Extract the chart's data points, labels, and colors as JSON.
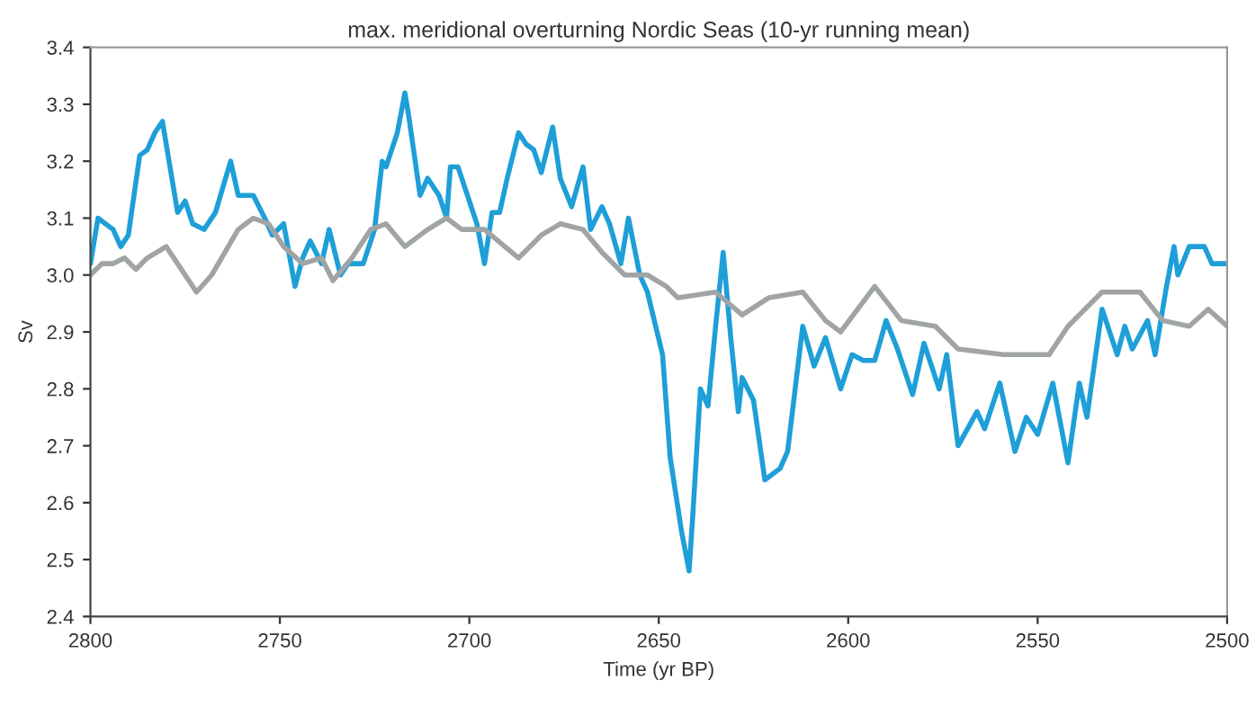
{
  "chart_data": {
    "type": "line",
    "title": "max. meridional overturning Nordic Seas (10-yr running mean)",
    "xlabel": "Time (yr BP)",
    "ylabel": "Sv",
    "xlim": [
      2800,
      2500
    ],
    "xticks": [
      2800,
      2750,
      2700,
      2650,
      2600,
      2550,
      2500
    ],
    "ylim": [
      2.4,
      3.4
    ],
    "yticks": [
      {
        "value": 2.4,
        "label": "2.4"
      },
      {
        "value": 2.5,
        "label": "2.5"
      },
      {
        "value": 2.6,
        "label": "2.6"
      },
      {
        "value": 2.7,
        "label": "2.7"
      },
      {
        "value": 2.8,
        "label": "2.8"
      },
      {
        "value": 2.9,
        "label": "2.9"
      },
      {
        "value": 3.0,
        "label": "3.0"
      },
      {
        "value": 3.1,
        "label": "3.1"
      },
      {
        "value": 3.2,
        "label": "3.2"
      },
      {
        "value": 3.3,
        "label": "3.3"
      },
      {
        "value": 3.4,
        "label": "3.4"
      }
    ],
    "grid": false,
    "marker": "none",
    "line_style": "solid",
    "series": [
      {
        "color": "#1e9fd8",
        "x": [
          2800,
          2798,
          2794,
          2792,
          2790,
          2787,
          2785,
          2783,
          2781,
          2780,
          2777,
          2775,
          2773,
          2770,
          2767,
          2763,
          2761,
          2757,
          2754,
          2752,
          2749,
          2746,
          2744,
          2742,
          2739,
          2737,
          2734,
          2732,
          2728,
          2725,
          2723,
          2722,
          2719,
          2717,
          2716,
          2713,
          2711,
          2708,
          2706,
          2705,
          2703,
          2700,
          2698,
          2696,
          2694,
          2692,
          2690,
          2687,
          2685,
          2683,
          2681,
          2678,
          2676,
          2673,
          2670,
          2668,
          2665,
          2663,
          2660,
          2658,
          2655,
          2653,
          2649,
          2647,
          2644,
          2642,
          2641,
          2639,
          2637,
          2635,
          2633,
          2631,
          2629,
          2628,
          2625,
          2622,
          2618,
          2616,
          2612,
          2609,
          2606,
          2602,
          2599,
          2596,
          2593,
          2590,
          2587,
          2583,
          2580,
          2576,
          2574,
          2571,
          2566,
          2564,
          2560,
          2556,
          2553,
          2550,
          2546,
          2542,
          2539,
          2537,
          2533,
          2529,
          2527,
          2525,
          2521,
          2519,
          2516,
          2514,
          2513,
          2510,
          2506,
          2504,
          2500
        ],
        "values": [
          3.02,
          3.1,
          3.08,
          3.05,
          3.07,
          3.21,
          3.22,
          3.25,
          3.27,
          3.23,
          3.11,
          3.13,
          3.09,
          3.08,
          3.11,
          3.2,
          3.14,
          3.14,
          3.1,
          3.07,
          3.09,
          2.98,
          3.03,
          3.06,
          3.02,
          3.08,
          3.0,
          3.02,
          3.02,
          3.08,
          3.2,
          3.19,
          3.25,
          3.32,
          3.28,
          3.14,
          3.17,
          3.14,
          3.1,
          3.19,
          3.19,
          3.13,
          3.09,
          3.02,
          3.11,
          3.11,
          3.17,
          3.25,
          3.23,
          3.22,
          3.18,
          3.26,
          3.17,
          3.12,
          3.19,
          3.08,
          3.12,
          3.09,
          3.02,
          3.1,
          3.0,
          2.97,
          2.86,
          2.68,
          2.55,
          2.48,
          2.58,
          2.8,
          2.77,
          2.91,
          3.04,
          2.89,
          2.76,
          2.82,
          2.78,
          2.64,
          2.66,
          2.69,
          2.91,
          2.84,
          2.89,
          2.8,
          2.86,
          2.85,
          2.85,
          2.92,
          2.87,
          2.79,
          2.88,
          2.8,
          2.86,
          2.7,
          2.76,
          2.73,
          2.81,
          2.69,
          2.75,
          2.72,
          2.81,
          2.67,
          2.81,
          2.75,
          2.94,
          2.86,
          2.91,
          2.87,
          2.92,
          2.86,
          2.98,
          3.05,
          3.0,
          3.05,
          3.05,
          3.02,
          3.02
        ]
      },
      {
        "color": "#a0a4a4",
        "x": [
          2800,
          2797,
          2794,
          2791,
          2788,
          2785,
          2780,
          2777,
          2772,
          2768,
          2761,
          2757,
          2753,
          2749,
          2744,
          2739,
          2736,
          2731,
          2726,
          2722,
          2717,
          2711,
          2706,
          2702,
          2696,
          2687,
          2681,
          2676,
          2670,
          2665,
          2659,
          2653,
          2648,
          2645,
          2635,
          2628,
          2621,
          2612,
          2606,
          2602,
          2593,
          2586,
          2577,
          2571,
          2559,
          2553,
          2547,
          2542,
          2533,
          2528,
          2523,
          2517,
          2510,
          2505,
          2500
        ],
        "values": [
          3.0,
          3.02,
          3.02,
          3.03,
          3.01,
          3.03,
          3.05,
          3.02,
          2.97,
          3.0,
          3.08,
          3.1,
          3.09,
          3.05,
          3.02,
          3.03,
          2.99,
          3.03,
          3.08,
          3.09,
          3.05,
          3.08,
          3.1,
          3.08,
          3.08,
          3.03,
          3.07,
          3.09,
          3.08,
          3.04,
          3.0,
          3.0,
          2.98,
          2.96,
          2.97,
          2.93,
          2.96,
          2.97,
          2.92,
          2.9,
          2.98,
          2.92,
          2.91,
          2.87,
          2.86,
          2.86,
          2.86,
          2.91,
          2.97,
          2.97,
          2.97,
          2.92,
          2.91,
          2.94,
          2.91
        ]
      }
    ]
  }
}
